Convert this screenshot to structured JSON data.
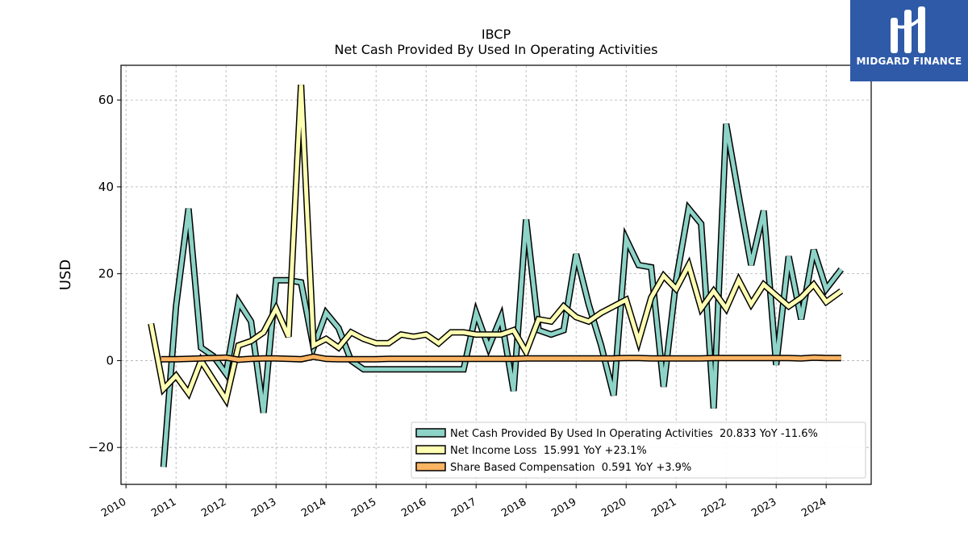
{
  "header": {
    "title": "IBCP",
    "subtitle": "Net Cash Provided By Used In Operating Activities"
  },
  "logo": {
    "text": "MIDGARD FINANCE",
    "color": "#2f5aa8"
  },
  "chart_data": {
    "type": "line",
    "title": "IBCP",
    "subtitle": "Net Cash Provided By Used In Operating Activities",
    "xlabel": "",
    "ylabel": "USD",
    "xlim": [
      2009.9,
      2024.9
    ],
    "ylim": [
      -28.5,
      68
    ],
    "x_ticks": [
      "2010",
      "2011",
      "2012",
      "2013",
      "2014",
      "2015",
      "2016",
      "2017",
      "2018",
      "2019",
      "2020",
      "2021",
      "2022",
      "2023",
      "2024"
    ],
    "y_ticks": [
      -20,
      0,
      20,
      40,
      60
    ],
    "y_tick_labels": [
      "−20",
      "0",
      "20",
      "40",
      "60"
    ],
    "grid": true,
    "legend_position": "lower-right",
    "series": [
      {
        "name": "Net Cash Provided By Used In Operating Activities",
        "legend_label": "Net Cash Provided By Used In Operating Activities  20.833 YoY -11.6%",
        "color": "#8dd3c7",
        "points": [
          [
            2010.75,
            -24.5
          ],
          [
            2011.0,
            12.5
          ],
          [
            2011.25,
            35
          ],
          [
            2011.5,
            3
          ],
          [
            2011.75,
            1
          ],
          [
            2012.0,
            -3
          ],
          [
            2012.25,
            13.5
          ],
          [
            2012.5,
            9
          ],
          [
            2012.75,
            -12
          ],
          [
            2013.0,
            18.5
          ],
          [
            2013.25,
            18.5
          ],
          [
            2013.5,
            18
          ],
          [
            2013.75,
            3
          ],
          [
            2014.0,
            11
          ],
          [
            2014.25,
            7.5
          ],
          [
            2014.5,
            0
          ],
          [
            2014.75,
            -2
          ],
          [
            2015.0,
            -2
          ],
          [
            2015.25,
            -2
          ],
          [
            2015.5,
            -2
          ],
          [
            2015.75,
            -2
          ],
          [
            2016.0,
            -2
          ],
          [
            2016.25,
            -2
          ],
          [
            2016.5,
            -2
          ],
          [
            2016.75,
            -2
          ],
          [
            2017.0,
            11
          ],
          [
            2017.25,
            3
          ],
          [
            2017.5,
            10
          ],
          [
            2017.75,
            -7
          ],
          [
            2018.0,
            32.5
          ],
          [
            2018.25,
            7
          ],
          [
            2018.5,
            6
          ],
          [
            2018.75,
            7
          ],
          [
            2019.0,
            24.5
          ],
          [
            2019.25,
            13
          ],
          [
            2019.5,
            3.5
          ],
          [
            2019.75,
            -8
          ],
          [
            2020.0,
            28
          ],
          [
            2020.25,
            22
          ],
          [
            2020.5,
            21.5
          ],
          [
            2020.75,
            -6
          ],
          [
            2021.0,
            18.5
          ],
          [
            2021.25,
            35
          ],
          [
            2021.5,
            31.5
          ],
          [
            2021.75,
            -11
          ],
          [
            2022.0,
            54.5
          ],
          [
            2022.25,
            38
          ],
          [
            2022.5,
            22
          ],
          [
            2022.75,
            34.5
          ],
          [
            2023.0,
            -1
          ],
          [
            2023.25,
            24
          ],
          [
            2023.5,
            9.5
          ],
          [
            2023.75,
            25.5
          ],
          [
            2024.0,
            16.5
          ],
          [
            2024.3,
            21
          ]
        ]
      },
      {
        "name": "Net Income Loss",
        "legend_label": "Net Income Loss  15.991 YoY +23.1%",
        "color": "#ffffb3",
        "points": [
          [
            2010.5,
            8.5
          ],
          [
            2010.75,
            -6.5
          ],
          [
            2011.0,
            -3.5
          ],
          [
            2011.25,
            -7.5
          ],
          [
            2011.5,
            0
          ],
          [
            2011.75,
            -4.5
          ],
          [
            2012.0,
            -9
          ],
          [
            2012.25,
            3.5
          ],
          [
            2012.5,
            4.5
          ],
          [
            2012.75,
            6.5
          ],
          [
            2013.0,
            12
          ],
          [
            2013.25,
            5.5
          ],
          [
            2013.5,
            63.5
          ],
          [
            2013.75,
            3.5
          ],
          [
            2014.0,
            5
          ],
          [
            2014.25,
            3
          ],
          [
            2014.5,
            6.5
          ],
          [
            2014.75,
            5
          ],
          [
            2015.0,
            4
          ],
          [
            2015.25,
            4
          ],
          [
            2015.5,
            6
          ],
          [
            2015.75,
            5.5
          ],
          [
            2016.0,
            6
          ],
          [
            2016.25,
            4
          ],
          [
            2016.5,
            6.5
          ],
          [
            2016.75,
            6.5
          ],
          [
            2017.0,
            6
          ],
          [
            2017.25,
            6
          ],
          [
            2017.5,
            6
          ],
          [
            2017.75,
            7
          ],
          [
            2018.0,
            2
          ],
          [
            2018.25,
            9.5
          ],
          [
            2018.5,
            9
          ],
          [
            2018.75,
            12.5
          ],
          [
            2019.0,
            10
          ],
          [
            2019.25,
            9
          ],
          [
            2019.5,
            11
          ],
          [
            2019.75,
            12.5
          ],
          [
            2020.0,
            14
          ],
          [
            2020.25,
            4.5
          ],
          [
            2020.5,
            14.5
          ],
          [
            2020.75,
            19.5
          ],
          [
            2021.0,
            16.5
          ],
          [
            2021.25,
            22
          ],
          [
            2021.5,
            12
          ],
          [
            2021.75,
            16
          ],
          [
            2022.0,
            12
          ],
          [
            2022.25,
            18.5
          ],
          [
            2022.5,
            13
          ],
          [
            2022.75,
            17.5
          ],
          [
            2023.0,
            15
          ],
          [
            2023.25,
            12.5
          ],
          [
            2023.5,
            14.5
          ],
          [
            2023.75,
            17.5
          ],
          [
            2024.0,
            13.5
          ],
          [
            2024.3,
            16
          ]
        ]
      },
      {
        "name": "Share Based Compensation",
        "legend_label": "Share Based Compensation  0.591 YoY +3.9%",
        "color": "#fdb462",
        "points": [
          [
            2010.7,
            0.3
          ],
          [
            2011.0,
            0.3
          ],
          [
            2011.25,
            0.4
          ],
          [
            2011.5,
            0.5
          ],
          [
            2011.75,
            0.6
          ],
          [
            2012.0,
            0.7
          ],
          [
            2012.25,
            0.2
          ],
          [
            2012.5,
            0.4
          ],
          [
            2012.75,
            0.5
          ],
          [
            2013.0,
            0.5
          ],
          [
            2013.25,
            0.4
          ],
          [
            2013.5,
            0.3
          ],
          [
            2013.75,
            0.9
          ],
          [
            2014.0,
            0.4
          ],
          [
            2014.25,
            0.3
          ],
          [
            2014.5,
            0.3
          ],
          [
            2014.75,
            0.3
          ],
          [
            2015.0,
            0.3
          ],
          [
            2015.25,
            0.4
          ],
          [
            2015.5,
            0.4
          ],
          [
            2015.75,
            0.4
          ],
          [
            2016.0,
            0.4
          ],
          [
            2016.25,
            0.4
          ],
          [
            2016.5,
            0.4
          ],
          [
            2016.75,
            0.4
          ],
          [
            2017.0,
            0.4
          ],
          [
            2017.25,
            0.4
          ],
          [
            2017.5,
            0.4
          ],
          [
            2017.75,
            0.4
          ],
          [
            2018.0,
            0.5
          ],
          [
            2018.25,
            0.5
          ],
          [
            2018.5,
            0.5
          ],
          [
            2018.75,
            0.5
          ],
          [
            2019.0,
            0.5
          ],
          [
            2019.25,
            0.5
          ],
          [
            2019.5,
            0.5
          ],
          [
            2019.75,
            0.5
          ],
          [
            2020.0,
            0.6
          ],
          [
            2020.25,
            0.6
          ],
          [
            2020.5,
            0.5
          ],
          [
            2020.75,
            0.5
          ],
          [
            2021.0,
            0.5
          ],
          [
            2021.25,
            0.5
          ],
          [
            2021.5,
            0.5
          ],
          [
            2021.75,
            0.6
          ],
          [
            2022.0,
            0.6
          ],
          [
            2022.25,
            0.6
          ],
          [
            2022.5,
            0.6
          ],
          [
            2022.75,
            0.6
          ],
          [
            2023.0,
            0.6
          ],
          [
            2023.25,
            0.6
          ],
          [
            2023.5,
            0.5
          ],
          [
            2023.75,
            0.7
          ],
          [
            2024.0,
            0.6
          ],
          [
            2024.3,
            0.6
          ]
        ]
      }
    ]
  }
}
